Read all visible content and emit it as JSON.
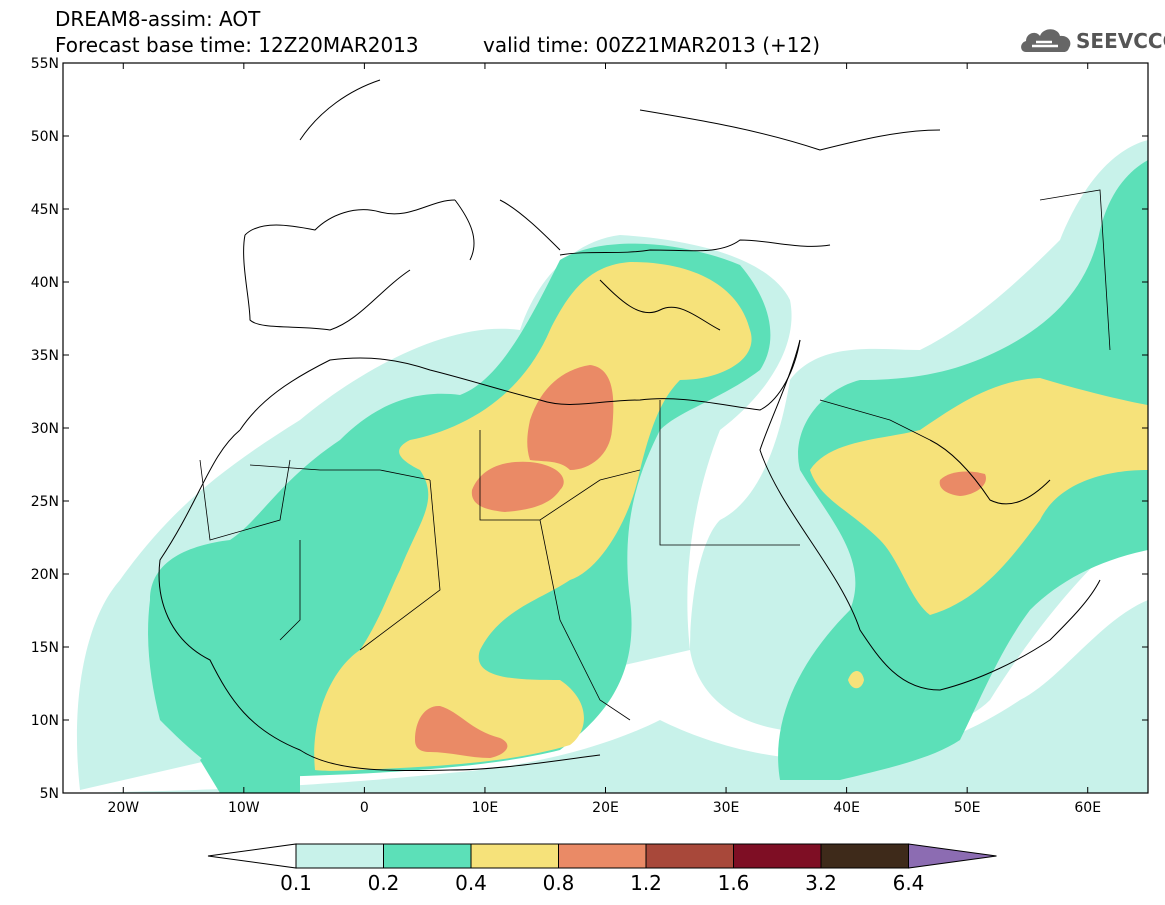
{
  "title": {
    "line1": "DREAM8-assim: AOT",
    "base_time": "Forecast base time: 12Z20MAR2013",
    "valid_time": "valid time: 00Z21MAR2013 (+12)"
  },
  "logo": {
    "text": "SEEVCCC",
    "icon": "cloud-logo-icon"
  },
  "map": {
    "lon_range": [
      -25,
      65
    ],
    "lat_range": [
      5,
      55
    ],
    "lat_labels": [
      "55N",
      "50N",
      "45N",
      "40N",
      "35N",
      "30N",
      "25N",
      "20N",
      "15N",
      "10N",
      "5N"
    ],
    "lon_labels": [
      "20W",
      "10W",
      "0",
      "10E",
      "20E",
      "30E",
      "40E",
      "50E",
      "60E"
    ]
  },
  "colorbar": {
    "tick_labels": [
      "0.1",
      "0.2",
      "0.4",
      "0.8",
      "1.2",
      "1.6",
      "3.2",
      "6.4"
    ],
    "colors": [
      "#c8f2ea",
      "#5ce0b8",
      "#f6e27a",
      "#ea8a66",
      "#a8483a",
      "#7e0e24",
      "#3e2a1a"
    ],
    "under_color": "#ffffff",
    "over_color": "#8c6cb2"
  }
}
